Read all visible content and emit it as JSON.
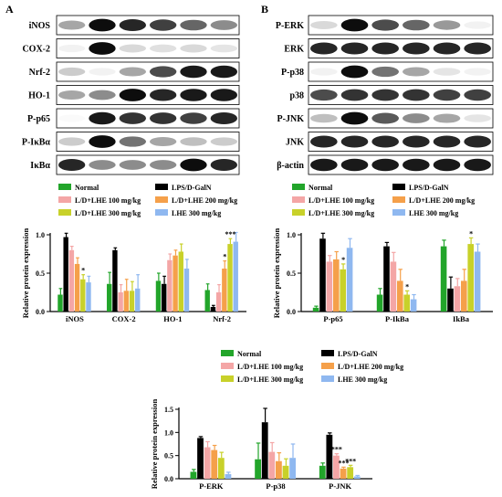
{
  "panels": {
    "a": "A",
    "b": "B"
  },
  "blot_a": [
    "iNOS",
    "COX-2",
    "Nrf-2",
    "HO-1",
    "P-p65",
    "P-IκBα",
    "IκBα"
  ],
  "blot_b": [
    "P-ERK",
    "ERK",
    "P-p38",
    "p38",
    "P-JNK",
    "JNK",
    "β-actin"
  ],
  "legend": [
    {
      "name": "Normal",
      "color": "#22a52a"
    },
    {
      "name": "LPS/D-GalN",
      "color": "#000000"
    },
    {
      "name": "L/D+LHE 100 mg/kg",
      "color": "#f4a6a6"
    },
    {
      "name": "L/D+LHE 200 mg/kg",
      "color": "#f5a04a"
    },
    {
      "name": "L/D+LHE 300 mg/kg",
      "color": "#c8d12a"
    },
    {
      "name": "LHE 300 mg/kg",
      "color": "#8fb8f0"
    }
  ],
  "chart_data": [
    {
      "type": "bar",
      "ylabel": "Relative protein expression",
      "ylim": [
        0,
        1.0
      ],
      "yticks": [
        "0.0",
        "0.5",
        "1.0"
      ],
      "categories": [
        "iNOS",
        "COX-2",
        "HO-1",
        "Nrf-2"
      ],
      "series": [
        {
          "name": "Normal",
          "values": [
            0.22,
            0.36,
            0.4,
            0.28
          ]
        },
        {
          "name": "LPS/D-GalN",
          "values": [
            0.97,
            0.8,
            0.36,
            0.06
          ]
        },
        {
          "name": "L/D+LHE 100 mg/kg",
          "values": [
            0.8,
            0.25,
            0.67,
            0.25
          ]
        },
        {
          "name": "L/D+LHE 200 mg/kg",
          "values": [
            0.62,
            0.27,
            0.73,
            0.56
          ]
        },
        {
          "name": "L/D+LHE 300 mg/kg",
          "values": [
            0.42,
            0.27,
            0.78,
            0.88
          ]
        },
        {
          "name": "LHE 300 mg/kg",
          "values": [
            0.38,
            0.3,
            0.56,
            0.91
          ]
        }
      ],
      "errors": [
        [
          0.08,
          0.15,
          0.1,
          0.08
        ],
        [
          0.05,
          0.03,
          0.1,
          0.02
        ],
        [
          0.05,
          0.1,
          0.08,
          0.1
        ],
        [
          0.08,
          0.15,
          0.07,
          0.1
        ],
        [
          0.06,
          0.12,
          0.1,
          0.07
        ],
        [
          0.08,
          0.18,
          0.12,
          0.12
        ]
      ],
      "annotations": [
        {
          "category": "iNOS",
          "series": "L/D+LHE 300 mg/kg",
          "text": "*"
        },
        {
          "category": "Nrf-2",
          "series": "L/D+LHE 200 mg/kg",
          "text": "*"
        },
        {
          "category": "Nrf-2",
          "series": "L/D+LHE 300 mg/kg",
          "text": "***"
        }
      ]
    },
    {
      "type": "bar",
      "ylabel": "Relative protein expression",
      "ylim": [
        0,
        1.0
      ],
      "yticks": [
        "0.0",
        "0.5",
        "1.0"
      ],
      "categories": [
        "P-p65",
        "P-IkBa",
        "IkBa"
      ],
      "series": [
        {
          "name": "Normal",
          "values": [
            0.05,
            0.22,
            0.85
          ]
        },
        {
          "name": "LPS/D-GalN",
          "values": [
            0.95,
            0.85,
            0.3
          ]
        },
        {
          "name": "L/D+LHE 100 mg/kg",
          "values": [
            0.65,
            0.65,
            0.33
          ]
        },
        {
          "name": "L/D+LHE 200 mg/kg",
          "values": [
            0.68,
            0.4,
            0.4
          ]
        },
        {
          "name": "L/D+LHE 300 mg/kg",
          "values": [
            0.55,
            0.22,
            0.88
          ]
        },
        {
          "name": "LHE 300 mg/kg",
          "values": [
            0.83,
            0.16,
            0.78
          ]
        }
      ],
      "errors": [
        [
          0.02,
          0.08,
          0.08
        ],
        [
          0.07,
          0.05,
          0.15
        ],
        [
          0.08,
          0.12,
          0.1
        ],
        [
          0.1,
          0.15,
          0.15
        ],
        [
          0.07,
          0.05,
          0.08
        ],
        [
          0.12,
          0.06,
          0.1
        ]
      ],
      "annotations": [
        {
          "category": "P-p65",
          "series": "L/D+LHE 300 mg/kg",
          "text": "*"
        },
        {
          "category": "P-IkBa",
          "series": "L/D+LHE 300 mg/kg",
          "text": "*"
        },
        {
          "category": "IkBa",
          "series": "L/D+LHE 300 mg/kg",
          "text": "*"
        }
      ]
    },
    {
      "type": "bar",
      "ylabel": "Relative protein expression",
      "ylim": [
        0,
        1.5
      ],
      "yticks": [
        "0.0",
        "0.5",
        "1.0",
        "1.5"
      ],
      "categories": [
        "P-ERK",
        "P-p38",
        "P-JNK"
      ],
      "series": [
        {
          "name": "Normal",
          "values": [
            0.15,
            0.42,
            0.28
          ]
        },
        {
          "name": "LPS/D-GalN",
          "values": [
            0.88,
            1.22,
            0.95
          ]
        },
        {
          "name": "L/D+LHE 100 mg/kg",
          "values": [
            0.68,
            0.58,
            0.5
          ]
        },
        {
          "name": "L/D+LHE 200 mg/kg",
          "values": [
            0.62,
            0.38,
            0.22
          ]
        },
        {
          "name": "L/D+LHE 300 mg/kg",
          "values": [
            0.45,
            0.28,
            0.25
          ]
        },
        {
          "name": "LHE 300 mg/kg",
          "values": [
            0.1,
            0.45,
            0.05
          ]
        }
      ],
      "errors": [
        [
          0.05,
          0.35,
          0.06
        ],
        [
          0.03,
          0.3,
          0.04
        ],
        [
          0.12,
          0.2,
          0.04
        ],
        [
          0.1,
          0.18,
          0.03
        ],
        [
          0.12,
          0.15,
          0.04
        ],
        [
          0.04,
          0.3,
          0.02
        ]
      ],
      "annotations": [
        {
          "category": "P-JNK",
          "series": "L/D+LHE 100 mg/kg",
          "text": "***"
        },
        {
          "category": "P-JNK",
          "series": "L/D+LHE 200 mg/kg",
          "text": "***"
        },
        {
          "category": "P-JNK",
          "series": "L/D+LHE 300 mg/kg",
          "text": "***"
        }
      ]
    }
  ]
}
